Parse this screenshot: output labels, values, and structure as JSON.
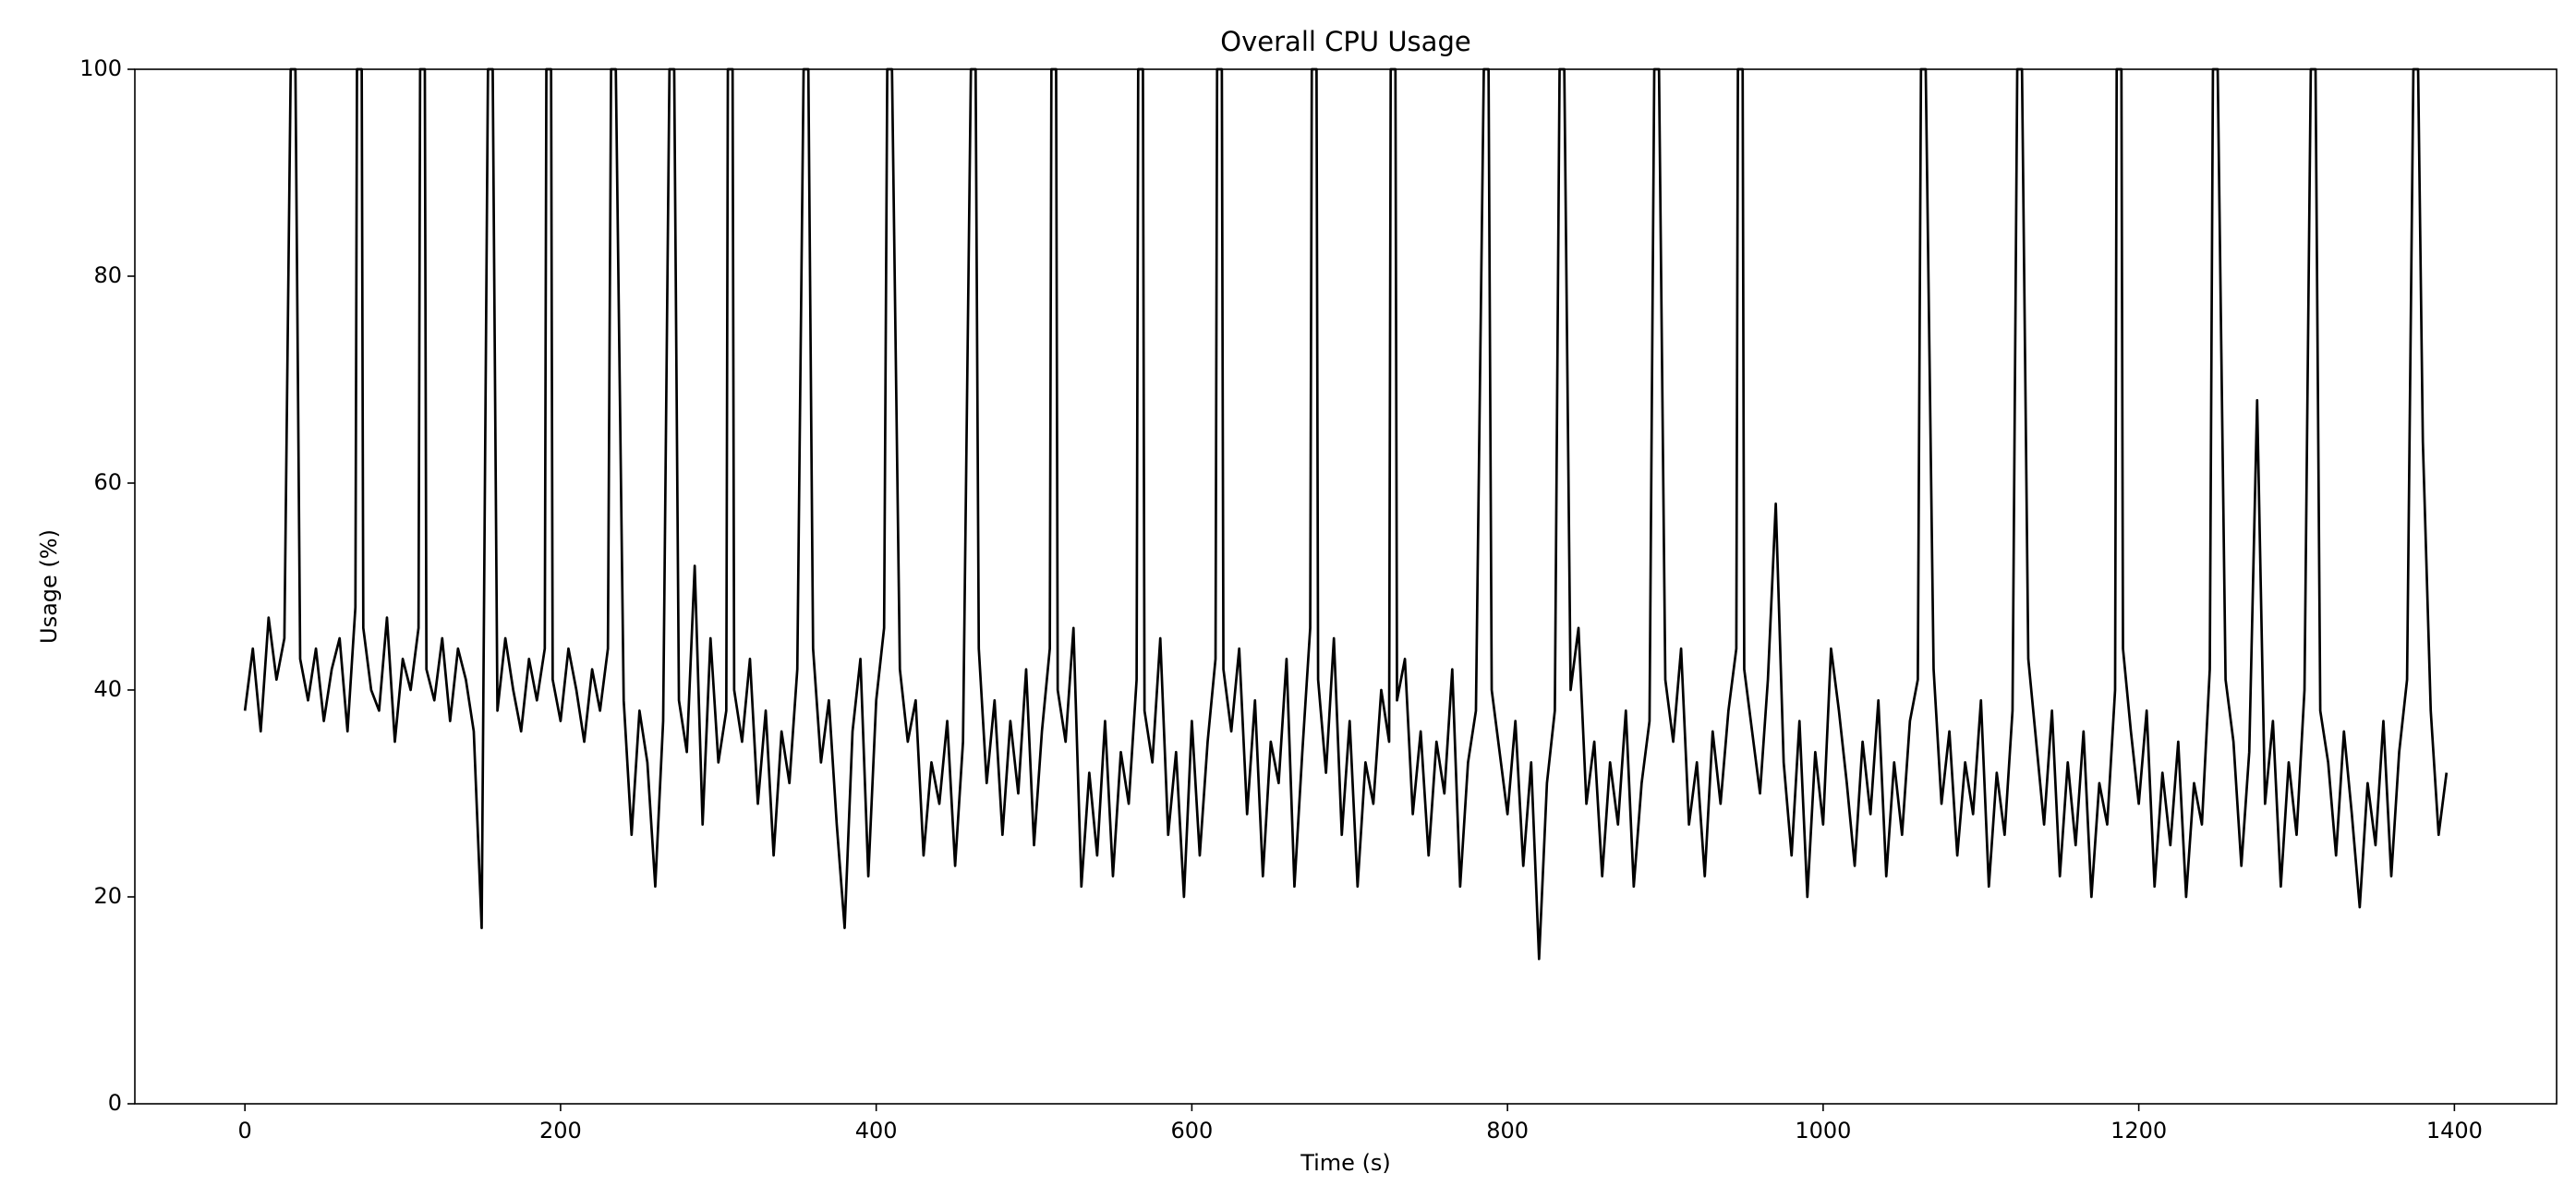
{
  "chart_data": {
    "type": "line",
    "title": "Overall CPU Usage",
    "x_label": "Time (s)",
    "y_label": "Usage (%)",
    "color": "#000000",
    "grid": false,
    "x": [
      0,
      5,
      10,
      15,
      20,
      25,
      29,
      32,
      35,
      40,
      45,
      50,
      55,
      60,
      65,
      70,
      71,
      74,
      75,
      80,
      85,
      90,
      95,
      100,
      105,
      110,
      111,
      114,
      115,
      120,
      125,
      130,
      135,
      140,
      145,
      150,
      154,
      157,
      160,
      165,
      170,
      175,
      180,
      185,
      190,
      191,
      194,
      195,
      200,
      205,
      210,
      215,
      220,
      225,
      230,
      232,
      235,
      240,
      245,
      250,
      255,
      260,
      265,
      269,
      272,
      275,
      280,
      285,
      290,
      295,
      300,
      305,
      306,
      309,
      310,
      315,
      320,
      325,
      330,
      335,
      340,
      345,
      350,
      354,
      357,
      360,
      365,
      370,
      375,
      380,
      385,
      390,
      395,
      400,
      405,
      407,
      410,
      415,
      420,
      425,
      430,
      435,
      440,
      445,
      450,
      455,
      460,
      463,
      465,
      470,
      475,
      480,
      485,
      490,
      495,
      500,
      505,
      510,
      511,
      514,
      515,
      520,
      525,
      530,
      535,
      540,
      545,
      550,
      555,
      560,
      565,
      566,
      569,
      570,
      575,
      580,
      585,
      590,
      595,
      600,
      605,
      610,
      615,
      616,
      619,
      620,
      625,
      630,
      635,
      640,
      645,
      650,
      655,
      660,
      665,
      670,
      675,
      676,
      679,
      680,
      685,
      690,
      695,
      700,
      705,
      710,
      715,
      720,
      725,
      726,
      729,
      730,
      735,
      740,
      745,
      750,
      755,
      760,
      765,
      770,
      775,
      780,
      785,
      788,
      790,
      795,
      800,
      805,
      810,
      815,
      820,
      825,
      830,
      833,
      836,
      840,
      845,
      850,
      855,
      860,
      865,
      870,
      875,
      880,
      885,
      890,
      893,
      896,
      900,
      905,
      910,
      915,
      920,
      925,
      930,
      935,
      940,
      945,
      946,
      949,
      950,
      955,
      960,
      965,
      970,
      975,
      980,
      985,
      990,
      995,
      1000,
      1005,
      1010,
      1015,
      1020,
      1025,
      1030,
      1035,
      1040,
      1045,
      1050,
      1055,
      1060,
      1062,
      1065,
      1070,
      1075,
      1080,
      1085,
      1090,
      1095,
      1100,
      1105,
      1110,
      1115,
      1120,
      1123,
      1126,
      1130,
      1135,
      1140,
      1145,
      1150,
      1155,
      1160,
      1165,
      1170,
      1175,
      1180,
      1185,
      1186,
      1189,
      1190,
      1195,
      1200,
      1205,
      1210,
      1215,
      1220,
      1225,
      1230,
      1235,
      1240,
      1245,
      1247,
      1250,
      1255,
      1260,
      1265,
      1270,
      1275,
      1280,
      1285,
      1290,
      1295,
      1300,
      1305,
      1309,
      1312,
      1315,
      1320,
      1325,
      1330,
      1335,
      1340,
      1345,
      1350,
      1355,
      1360,
      1365,
      1370,
      1374,
      1377,
      1380,
      1385,
      1390,
      1395
    ],
    "values": [
      38,
      44,
      36,
      47,
      41,
      45,
      100,
      100,
      43,
      39,
      44,
      37,
      42,
      45,
      36,
      48,
      100,
      100,
      46,
      40,
      38,
      47,
      35,
      43,
      40,
      46,
      100,
      100,
      42,
      39,
      45,
      37,
      44,
      41,
      36,
      17,
      100,
      100,
      38,
      45,
      40,
      36,
      43,
      39,
      44,
      100,
      100,
      41,
      37,
      44,
      40,
      35,
      42,
      38,
      44,
      100,
      100,
      39,
      26,
      38,
      33,
      21,
      37,
      100,
      100,
      39,
      34,
      52,
      27,
      45,
      33,
      38,
      100,
      100,
      40,
      35,
      43,
      29,
      38,
      24,
      36,
      31,
      42,
      100,
      100,
      44,
      33,
      39,
      27,
      17,
      36,
      43,
      22,
      39,
      46,
      100,
      100,
      42,
      35,
      39,
      24,
      33,
      29,
      37,
      23,
      35,
      100,
      100,
      44,
      31,
      39,
      26,
      37,
      30,
      42,
      25,
      36,
      44,
      100,
      100,
      40,
      35,
      46,
      21,
      32,
      24,
      37,
      22,
      34,
      29,
      41,
      100,
      100,
      38,
      33,
      45,
      26,
      34,
      20,
      37,
      24,
      35,
      43,
      100,
      100,
      42,
      36,
      44,
      28,
      39,
      22,
      35,
      31,
      43,
      21,
      34,
      46,
      100,
      100,
      41,
      32,
      45,
      26,
      37,
      21,
      33,
      29,
      40,
      35,
      100,
      100,
      39,
      43,
      28,
      36,
      24,
      35,
      30,
      42,
      21,
      33,
      38,
      100,
      100,
      40,
      34,
      28,
      37,
      23,
      33,
      14,
      31,
      38,
      100,
      100,
      40,
      46,
      29,
      35,
      22,
      33,
      27,
      38,
      21,
      31,
      37,
      100,
      100,
      41,
      35,
      44,
      27,
      33,
      22,
      36,
      29,
      38,
      44,
      100,
      100,
      42,
      36,
      30,
      41,
      58,
      33,
      24,
      37,
      20,
      34,
      27,
      44,
      38,
      31,
      23,
      35,
      28,
      39,
      22,
      33,
      26,
      37,
      41,
      100,
      100,
      42,
      29,
      36,
      24,
      33,
      28,
      39,
      21,
      32,
      26,
      38,
      100,
      100,
      43,
      35,
      27,
      38,
      22,
      33,
      25,
      36,
      20,
      31,
      27,
      40,
      100,
      100,
      44,
      36,
      29,
      38,
      21,
      32,
      25,
      35,
      20,
      31,
      27,
      42,
      100,
      100,
      41,
      35,
      23,
      34,
      68,
      29,
      37,
      21,
      33,
      26,
      40,
      100,
      100,
      38,
      33,
      24,
      36,
      28,
      19,
      31,
      25,
      37,
      22,
      34,
      41,
      100,
      100,
      64,
      38,
      26,
      32
    ],
    "xlim": [
      -69.75,
      1464.75
    ],
    "xticks": [
      0,
      200,
      400,
      600,
      800,
      1000,
      1200,
      1400
    ],
    "ylim": [
      0,
      100
    ],
    "yticks": [
      0,
      20,
      40,
      60,
      80,
      100
    ]
  }
}
